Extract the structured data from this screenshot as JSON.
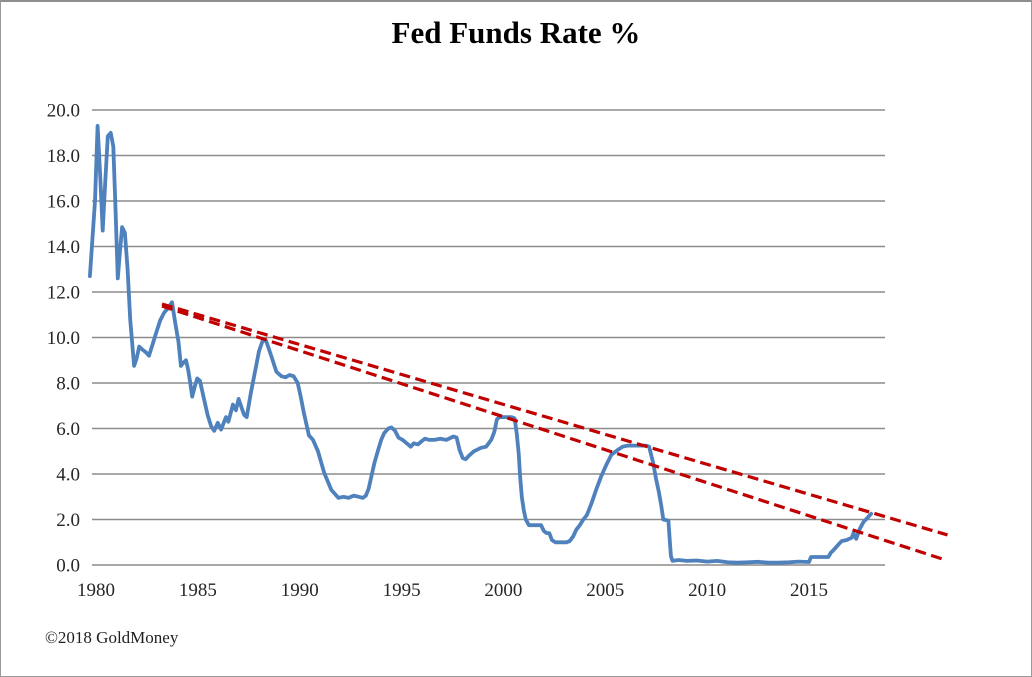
{
  "footer": {
    "copyright": "©2018 GoldMoney"
  },
  "chart_data": {
    "type": "line",
    "title": "Fed Funds Rate %",
    "xlabel": "",
    "ylabel": "",
    "xlim": [
      1979.7,
      2018.7
    ],
    "ylim": [
      0,
      20
    ],
    "grid": "horizontal-only",
    "legend": "none",
    "x_ticks": [
      {
        "v": 1980,
        "label": "1980"
      },
      {
        "v": 1985,
        "label": "1985"
      },
      {
        "v": 1990,
        "label": "1990"
      },
      {
        "v": 1995,
        "label": "1995"
      },
      {
        "v": 2000,
        "label": "2000"
      },
      {
        "v": 2005,
        "label": "2005"
      },
      {
        "v": 2010,
        "label": "2010"
      },
      {
        "v": 2015,
        "label": "2015"
      }
    ],
    "y_ticks": [
      {
        "v": 20,
        "label": "20.0"
      },
      {
        "v": 18,
        "label": "18.0"
      },
      {
        "v": 16,
        "label": "16.0"
      },
      {
        "v": 14,
        "label": "14.0"
      },
      {
        "v": 12,
        "label": "12.0"
      },
      {
        "v": 10,
        "label": "10.0"
      },
      {
        "v": 8,
        "label": "8.0"
      },
      {
        "v": 6,
        "label": "6.0"
      },
      {
        "v": 4,
        "label": "4.0"
      },
      {
        "v": 2,
        "label": "2.0"
      },
      {
        "v": 0,
        "label": "0.0"
      }
    ],
    "series": [
      {
        "name": "Fed Funds Rate %",
        "color": "#4f81bd",
        "points": [
          [
            1979.7,
            12.7
          ],
          [
            1979.95,
            16.0
          ],
          [
            1980.08,
            19.3
          ],
          [
            1980.2,
            17.2
          ],
          [
            1980.33,
            14.7
          ],
          [
            1980.45,
            16.8
          ],
          [
            1980.58,
            18.85
          ],
          [
            1980.72,
            19.0
          ],
          [
            1980.85,
            18.4
          ],
          [
            1980.95,
            15.8
          ],
          [
            1981.07,
            12.6
          ],
          [
            1981.18,
            13.8
          ],
          [
            1981.28,
            14.85
          ],
          [
            1981.42,
            14.6
          ],
          [
            1981.55,
            13.0
          ],
          [
            1981.68,
            10.8
          ],
          [
            1981.87,
            8.75
          ],
          [
            1982.0,
            9.1
          ],
          [
            1982.12,
            9.6
          ],
          [
            1982.3,
            9.45
          ],
          [
            1982.45,
            9.35
          ],
          [
            1982.6,
            9.2
          ],
          [
            1982.78,
            9.7
          ],
          [
            1982.95,
            10.2
          ],
          [
            1983.15,
            10.75
          ],
          [
            1983.35,
            11.1
          ],
          [
            1983.55,
            11.3
          ],
          [
            1983.73,
            11.55
          ],
          [
            1983.9,
            10.6
          ],
          [
            1984.05,
            9.8
          ],
          [
            1984.17,
            8.75
          ],
          [
            1984.3,
            8.9
          ],
          [
            1984.42,
            9.0
          ],
          [
            1984.52,
            8.6
          ],
          [
            1984.62,
            8.05
          ],
          [
            1984.72,
            7.4
          ],
          [
            1984.85,
            7.85
          ],
          [
            1984.97,
            8.2
          ],
          [
            1985.1,
            8.1
          ],
          [
            1985.3,
            7.3
          ],
          [
            1985.48,
            6.6
          ],
          [
            1985.65,
            6.1
          ],
          [
            1985.8,
            5.9
          ],
          [
            1985.98,
            6.25
          ],
          [
            1986.14,
            5.95
          ],
          [
            1986.38,
            6.5
          ],
          [
            1986.5,
            6.3
          ],
          [
            1986.72,
            7.05
          ],
          [
            1986.87,
            6.8
          ],
          [
            1987.0,
            7.3
          ],
          [
            1987.15,
            6.9
          ],
          [
            1987.27,
            6.6
          ],
          [
            1987.4,
            6.5
          ],
          [
            1987.6,
            7.55
          ],
          [
            1987.85,
            8.7
          ],
          [
            1988.0,
            9.4
          ],
          [
            1988.2,
            9.9
          ],
          [
            1988.35,
            9.85
          ],
          [
            1988.6,
            9.2
          ],
          [
            1988.85,
            8.5
          ],
          [
            1989.1,
            8.3
          ],
          [
            1989.3,
            8.25
          ],
          [
            1989.5,
            8.35
          ],
          [
            1989.7,
            8.3
          ],
          [
            1989.9,
            8.0
          ],
          [
            1990.05,
            7.4
          ],
          [
            1990.2,
            6.7
          ],
          [
            1990.45,
            5.7
          ],
          [
            1990.65,
            5.5
          ],
          [
            1990.9,
            5.0
          ],
          [
            1991.2,
            4.05
          ],
          [
            1991.55,
            3.3
          ],
          [
            1991.9,
            2.95
          ],
          [
            1992.15,
            3.0
          ],
          [
            1992.4,
            2.95
          ],
          [
            1992.65,
            3.05
          ],
          [
            1992.9,
            3.0
          ],
          [
            1993.1,
            2.95
          ],
          [
            1993.25,
            3.05
          ],
          [
            1993.38,
            3.35
          ],
          [
            1993.52,
            3.9
          ],
          [
            1993.67,
            4.5
          ],
          [
            1993.85,
            5.05
          ],
          [
            1994.0,
            5.5
          ],
          [
            1994.15,
            5.8
          ],
          [
            1994.35,
            6.0
          ],
          [
            1994.5,
            6.05
          ],
          [
            1994.68,
            5.9
          ],
          [
            1994.85,
            5.6
          ],
          [
            1995.05,
            5.5
          ],
          [
            1995.25,
            5.35
          ],
          [
            1995.45,
            5.2
          ],
          [
            1995.6,
            5.35
          ],
          [
            1995.8,
            5.3
          ],
          [
            1996.0,
            5.45
          ],
          [
            1996.15,
            5.55
          ],
          [
            1996.35,
            5.5
          ],
          [
            1996.6,
            5.5
          ],
          [
            1996.9,
            5.55
          ],
          [
            1997.2,
            5.5
          ],
          [
            1997.55,
            5.65
          ],
          [
            1997.7,
            5.6
          ],
          [
            1997.85,
            5.05
          ],
          [
            1998.0,
            4.7
          ],
          [
            1998.15,
            4.65
          ],
          [
            1998.3,
            4.8
          ],
          [
            1998.55,
            5.0
          ],
          [
            1998.9,
            5.15
          ],
          [
            1999.15,
            5.2
          ],
          [
            1999.4,
            5.5
          ],
          [
            1999.55,
            5.85
          ],
          [
            1999.68,
            6.4
          ],
          [
            1999.8,
            6.5
          ],
          [
            2000.1,
            6.5
          ],
          [
            2000.4,
            6.5
          ],
          [
            2000.55,
            6.45
          ],
          [
            2000.65,
            5.8
          ],
          [
            2000.75,
            4.9
          ],
          [
            2000.82,
            3.9
          ],
          [
            2000.9,
            3.0
          ],
          [
            2001.0,
            2.4
          ],
          [
            2001.1,
            2.0
          ],
          [
            2001.25,
            1.75
          ],
          [
            2001.85,
            1.75
          ],
          [
            2001.98,
            1.5
          ],
          [
            2002.12,
            1.4
          ],
          [
            2002.25,
            1.4
          ],
          [
            2002.38,
            1.1
          ],
          [
            2002.55,
            1.0
          ],
          [
            2003.1,
            1.0
          ],
          [
            2003.25,
            1.05
          ],
          [
            2003.42,
            1.25
          ],
          [
            2003.58,
            1.55
          ],
          [
            2003.75,
            1.75
          ],
          [
            2003.92,
            2.0
          ],
          [
            2004.1,
            2.2
          ],
          [
            2004.32,
            2.7
          ],
          [
            2004.55,
            3.3
          ],
          [
            2004.8,
            3.9
          ],
          [
            2005.05,
            4.4
          ],
          [
            2005.3,
            4.85
          ],
          [
            2005.6,
            5.05
          ],
          [
            2005.85,
            5.2
          ],
          [
            2006.1,
            5.25
          ],
          [
            2006.6,
            5.25
          ],
          [
            2007.0,
            5.25
          ],
          [
            2007.15,
            5.2
          ],
          [
            2007.35,
            4.5
          ],
          [
            2007.5,
            3.75
          ],
          [
            2007.63,
            3.2
          ],
          [
            2007.75,
            2.6
          ],
          [
            2007.85,
            2.0
          ],
          [
            2008.1,
            1.95
          ],
          [
            2008.17,
            1.0
          ],
          [
            2008.22,
            0.4
          ],
          [
            2008.3,
            0.18
          ],
          [
            2008.6,
            0.22
          ],
          [
            2009.0,
            0.18
          ],
          [
            2009.5,
            0.2
          ],
          [
            2010.0,
            0.15
          ],
          [
            2010.5,
            0.18
          ],
          [
            2011.0,
            0.12
          ],
          [
            2011.5,
            0.1
          ],
          [
            2012.0,
            0.12
          ],
          [
            2012.5,
            0.14
          ],
          [
            2013.0,
            0.1
          ],
          [
            2013.5,
            0.1
          ],
          [
            2014.0,
            0.12
          ],
          [
            2014.5,
            0.15
          ],
          [
            2015.0,
            0.13
          ],
          [
            2015.1,
            0.35
          ],
          [
            2015.95,
            0.35
          ],
          [
            2016.08,
            0.55
          ],
          [
            2016.2,
            0.65
          ],
          [
            2016.5,
            0.95
          ],
          [
            2016.6,
            1.05
          ],
          [
            2016.85,
            1.1
          ],
          [
            2017.1,
            1.2
          ],
          [
            2017.18,
            1.4
          ],
          [
            2017.32,
            1.15
          ],
          [
            2017.5,
            1.6
          ],
          [
            2017.68,
            1.9
          ],
          [
            2017.85,
            2.05
          ],
          [
            2018.05,
            2.25
          ]
        ]
      }
    ],
    "trendlines": [
      {
        "name": "upper-downtrend",
        "color": "#c00000",
        "style": "dashed",
        "from": [
          1983.24,
          11.47
        ],
        "to": [
          2021.8,
          1.32
        ]
      },
      {
        "name": "lower-downtrend",
        "color": "#c00000",
        "style": "dashed",
        "from": [
          1983.24,
          11.38
        ],
        "to": [
          2021.7,
          0.22
        ]
      }
    ]
  }
}
